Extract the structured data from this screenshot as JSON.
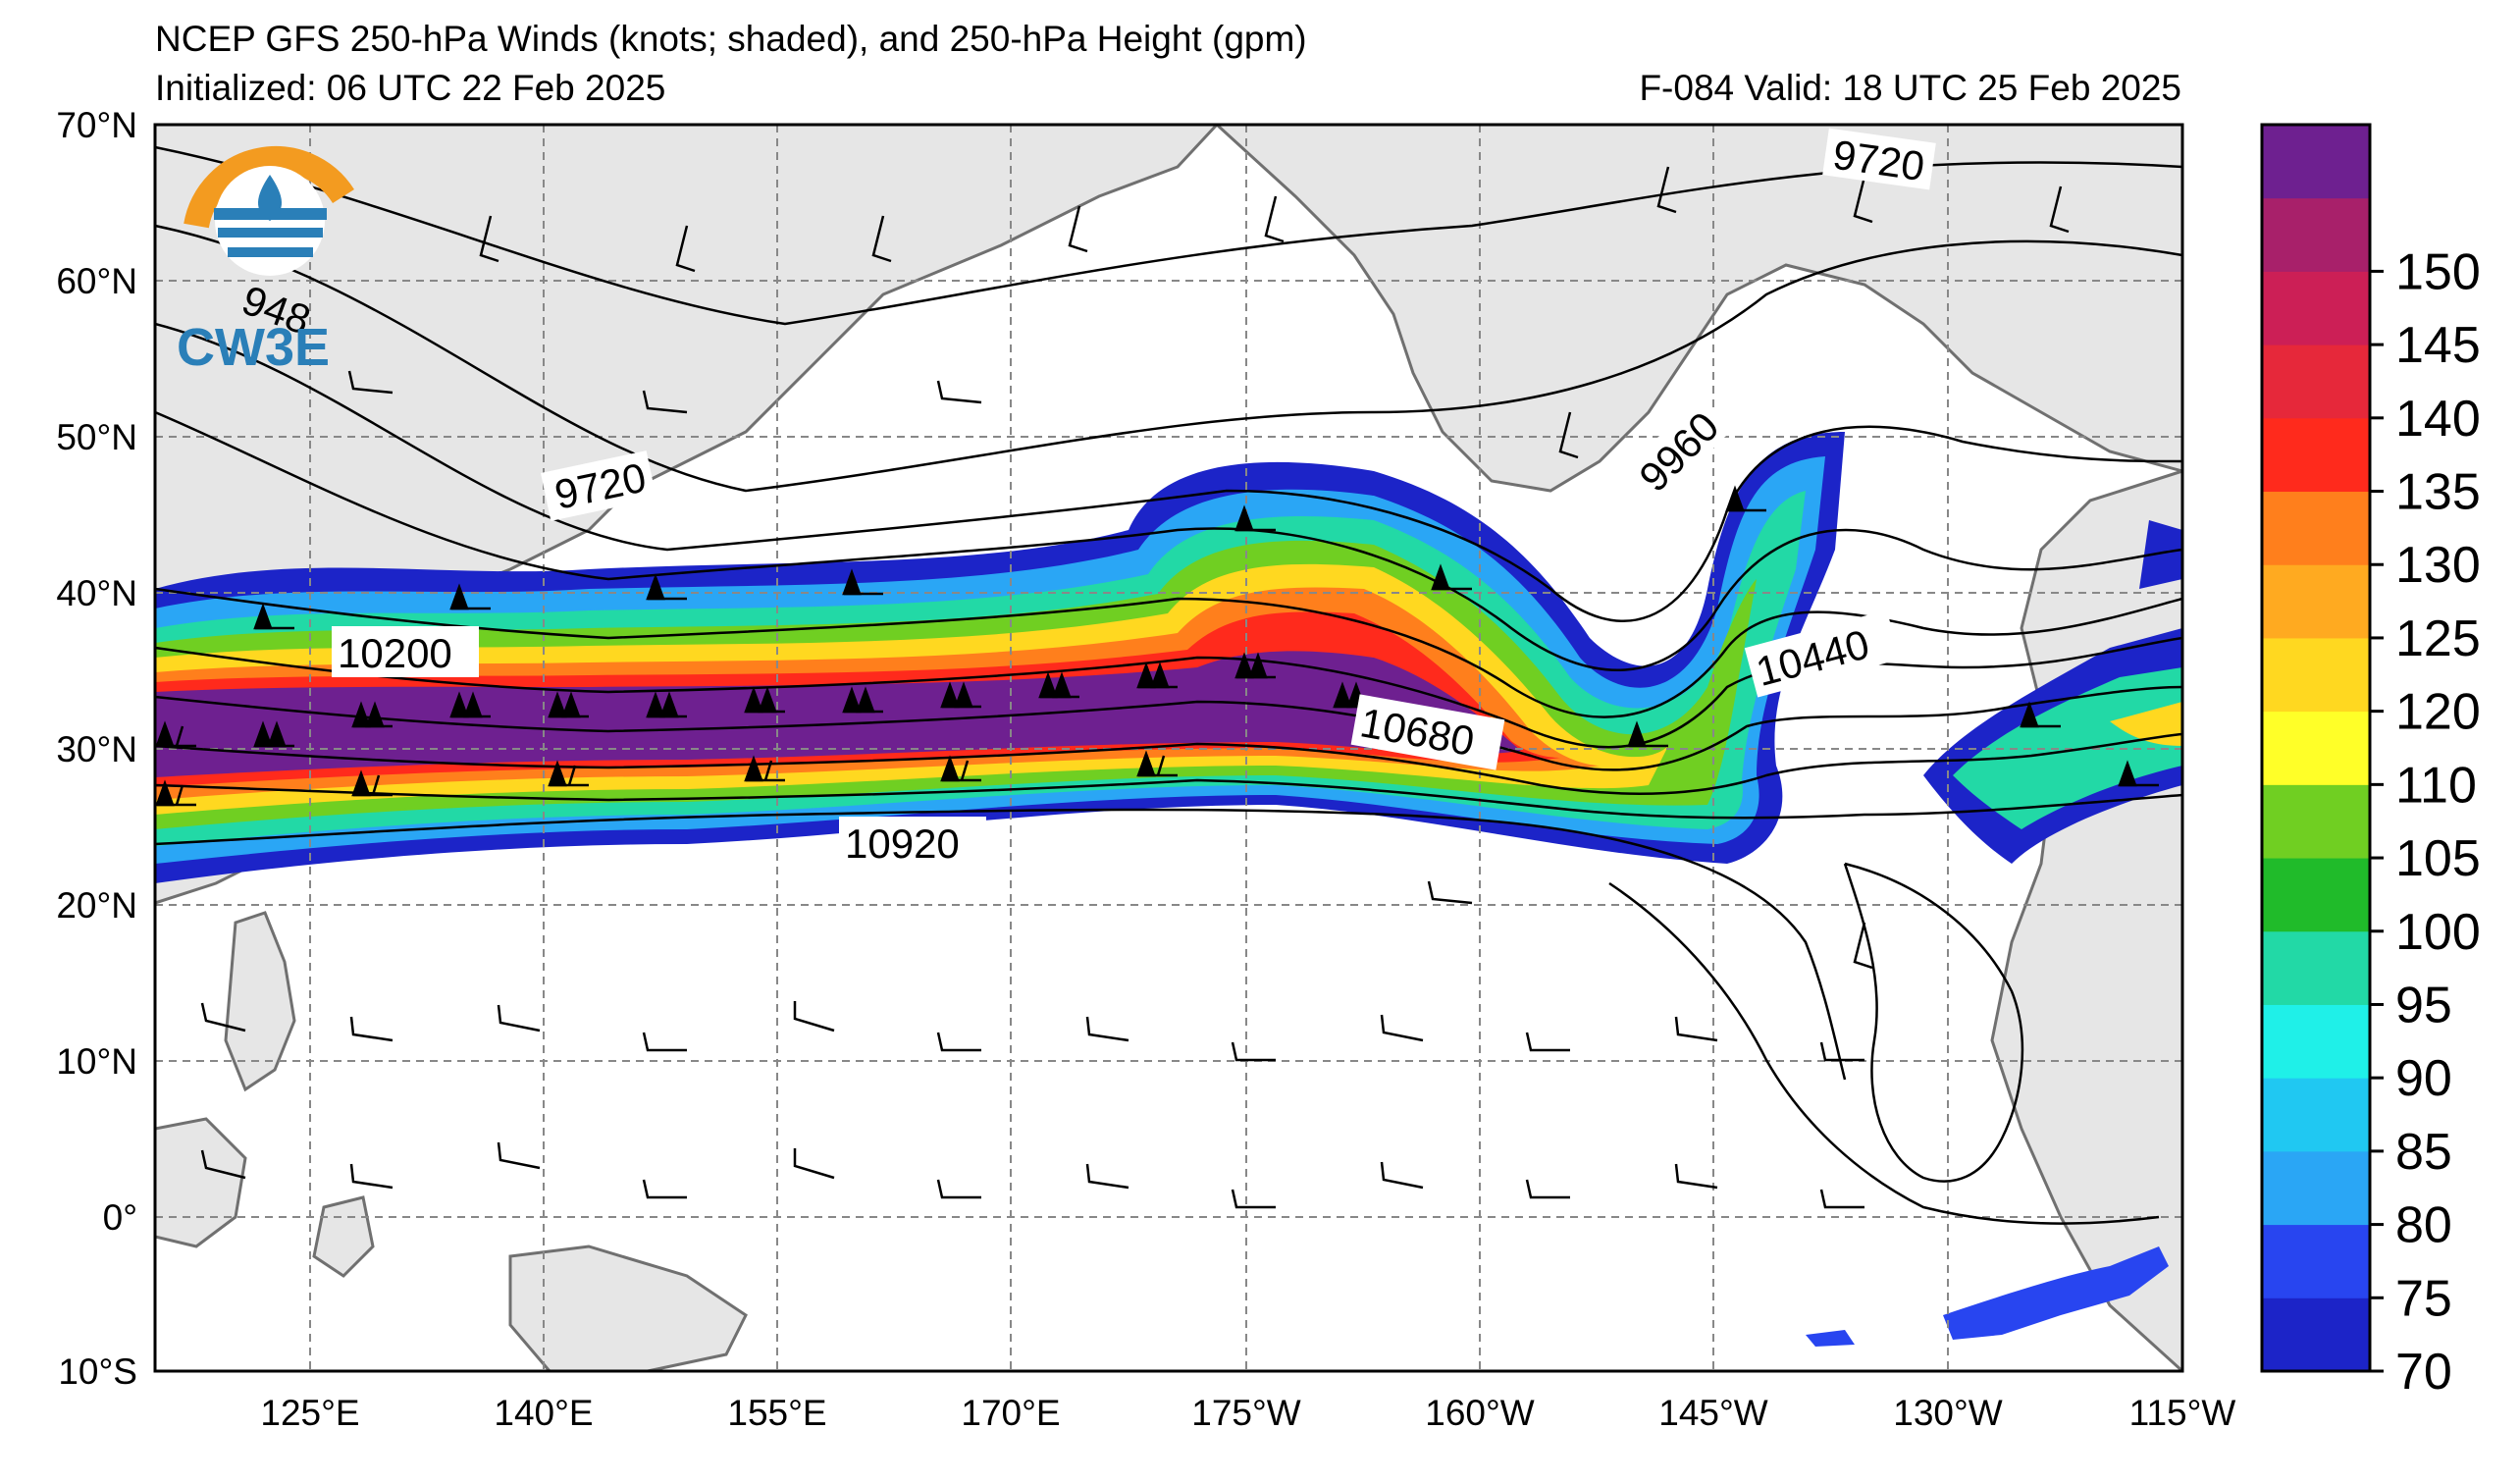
{
  "header": {
    "title": "NCEP GFS 250-hPa Winds (knots; shaded), and 250-hPa Height (gpm)",
    "initialized": "Initialized: 06 UTC 22 Feb 2025",
    "valid": "F-084  Valid: 18 UTC 25 Feb 2025"
  },
  "logo": {
    "text": "CW3E"
  },
  "axes": {
    "lat_labels": [
      "70°N",
      "60°N",
      "50°N",
      "40°N",
      "30°N",
      "20°N",
      "10°N",
      "0°",
      "10°S"
    ],
    "lon_labels": [
      "125°E",
      "140°E",
      "155°E",
      "170°E",
      "175°W",
      "160°W",
      "145°W",
      "130°W",
      "115°W"
    ]
  },
  "colorbar": {
    "ticks": [
      "70",
      "75",
      "80",
      "85",
      "90",
      "95",
      "100",
      "105",
      "110",
      "120",
      "125",
      "130",
      "135",
      "140",
      "145",
      "150"
    ],
    "colors": [
      "#1c24c8",
      "#2845f0",
      "#2aa6f5",
      "#20c8f2",
      "#1ff0e8",
      "#22d9a6",
      "#20bb2a",
      "#70cf22",
      "#ffff28",
      "#ffd820",
      "#ffaa20",
      "#ff7f1c",
      "#ff2a1c",
      "#e6283a",
      "#cc1f56",
      "#a8206a",
      "#6e2090"
    ]
  },
  "height_labels": [
    "9720",
    "9720",
    "9960",
    "10200",
    "10440",
    "10680",
    "10920",
    "948"
  ]
}
